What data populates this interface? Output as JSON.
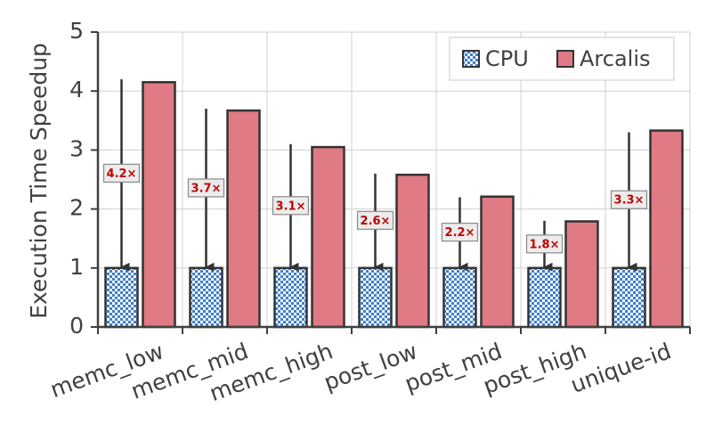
{
  "chart_data": {
    "type": "bar",
    "ylabel": "Execution Time Speedup",
    "xlabel": "",
    "ylim": [
      0,
      5
    ],
    "yticks": [
      0,
      1,
      2,
      3,
      4,
      5
    ],
    "grid": true,
    "legend_position": "top-right",
    "categories": [
      "memc_low",
      "memc_mid",
      "memc_high",
      "post_low",
      "post_mid",
      "post_high",
      "unique-id"
    ],
    "series": [
      {
        "name": "CPU",
        "values": [
          1,
          1,
          1,
          1,
          1,
          1,
          1
        ],
        "color": "#5b8fd0",
        "pattern": "checker"
      },
      {
        "name": "Arcalis",
        "values": [
          4.15,
          3.67,
          3.05,
          2.58,
          2.21,
          1.79,
          3.33
        ],
        "color": "#e07a84"
      }
    ],
    "annotations": [
      {
        "label": "4.2×",
        "value": 4.2
      },
      {
        "label": "3.7×",
        "value": 3.7
      },
      {
        "label": "3.1×",
        "value": 3.1
      },
      {
        "label": "2.6×",
        "value": 2.6
      },
      {
        "label": "2.2×",
        "value": 2.2
      },
      {
        "label": "1.8×",
        "value": 1.8
      },
      {
        "label": "3.3×",
        "value": 3.3
      }
    ],
    "annotation_color": "#c00000"
  }
}
